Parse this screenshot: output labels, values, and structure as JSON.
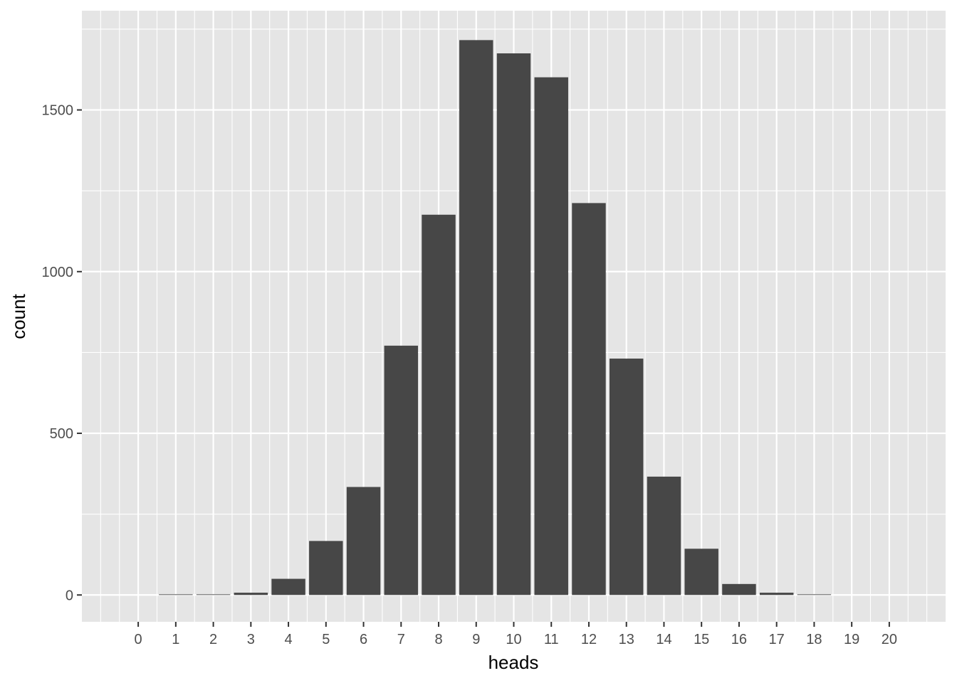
{
  "chart_data": {
    "type": "bar",
    "title": "",
    "xlabel": "heads",
    "ylabel": "count",
    "categories": [
      "0",
      "1",
      "2",
      "3",
      "4",
      "5",
      "6",
      "7",
      "8",
      "9",
      "10",
      "11",
      "12",
      "13",
      "14",
      "15",
      "16",
      "17",
      "18",
      "19",
      "20"
    ],
    "values": [
      0,
      2,
      2,
      7,
      50,
      167,
      334,
      771,
      1176,
      1716,
      1675,
      1601,
      1212,
      731,
      366,
      143,
      34,
      7,
      2,
      0,
      0
    ],
    "yticks": [
      0,
      500,
      1000,
      1500
    ],
    "ytick_labels": [
      "0",
      "500",
      "1000",
      "1500"
    ],
    "ylim": [
      -83,
      1807
    ],
    "xlim": [
      -1.5,
      21.5
    ],
    "grid": true,
    "legend": "none",
    "colors": {
      "bar": "#474747",
      "panel": "#e5e5e5",
      "grid_major": "#ffffff",
      "tick_text": "#4d4d4d"
    }
  }
}
